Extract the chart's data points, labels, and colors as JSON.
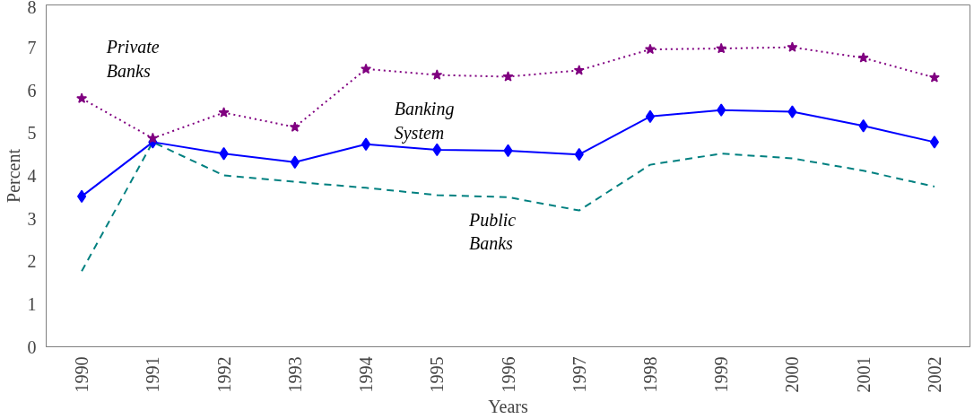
{
  "chart_data": {
    "type": "line",
    "xlabel": "Years",
    "ylabel": "Percent",
    "categories": [
      "1990",
      "1991",
      "1992",
      "1993",
      "1994",
      "1995",
      "1996",
      "1997",
      "1998",
      "1999",
      "2000",
      "2001",
      "2002"
    ],
    "ylim": [
      0,
      8
    ],
    "yticks": [
      0,
      1,
      2,
      3,
      4,
      5,
      6,
      7,
      8
    ],
    "grid": false,
    "legend": false,
    "series": [
      {
        "name": "Private Banks",
        "color": "#800080",
        "marker": "star",
        "line_style": "dotted",
        "values": [
          5.81,
          4.88,
          5.48,
          5.14,
          6.5,
          6.36,
          6.32,
          6.47,
          6.96,
          6.98,
          7.01,
          6.76,
          6.3
        ]
      },
      {
        "name": "Banking System",
        "color": "#0000ff",
        "marker": "diamond",
        "line_style": "solid",
        "values": [
          3.52,
          4.79,
          4.52,
          4.32,
          4.74,
          4.61,
          4.59,
          4.5,
          5.39,
          5.54,
          5.5,
          5.17,
          4.79
        ]
      },
      {
        "name": "Public Banks",
        "color": "#008080",
        "marker": "none",
        "line_style": "dashed",
        "values": [
          1.77,
          4.79,
          4.01,
          3.86,
          3.72,
          3.55,
          3.5,
          3.19,
          4.26,
          4.52,
          4.41,
          4.12,
          3.75
        ]
      }
    ]
  }
}
